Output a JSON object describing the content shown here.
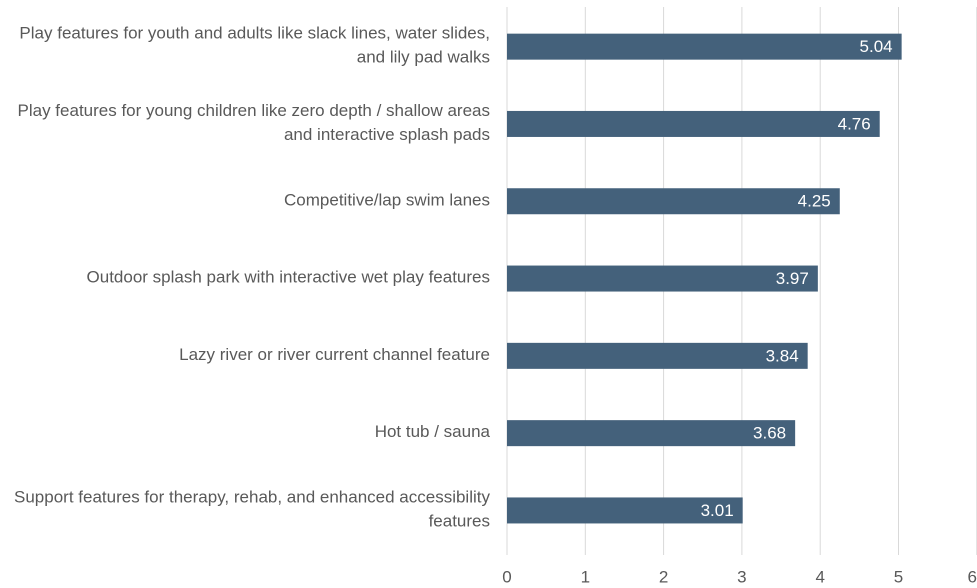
{
  "chart_data": {
    "type": "bar",
    "orientation": "horizontal",
    "categories": [
      "Play features for youth and adults like slack lines, water slides, and lily pad walks",
      "Play features for young children like zero depth / shallow areas and interactive splash pads",
      "Competitive/lap swim lanes",
      "Outdoor splash park with interactive wet play features",
      "Lazy river or river current channel feature",
      "Hot tub / sauna",
      "Support features for therapy, rehab, and enhanced accessibility features"
    ],
    "values": [
      5.04,
      4.76,
      4.25,
      3.97,
      3.84,
      3.68,
      3.01
    ],
    "color": "#44617b",
    "xlim": [
      0,
      6
    ],
    "xticks": [
      0,
      1,
      2,
      3,
      4,
      5,
      6
    ],
    "grid": true
  }
}
